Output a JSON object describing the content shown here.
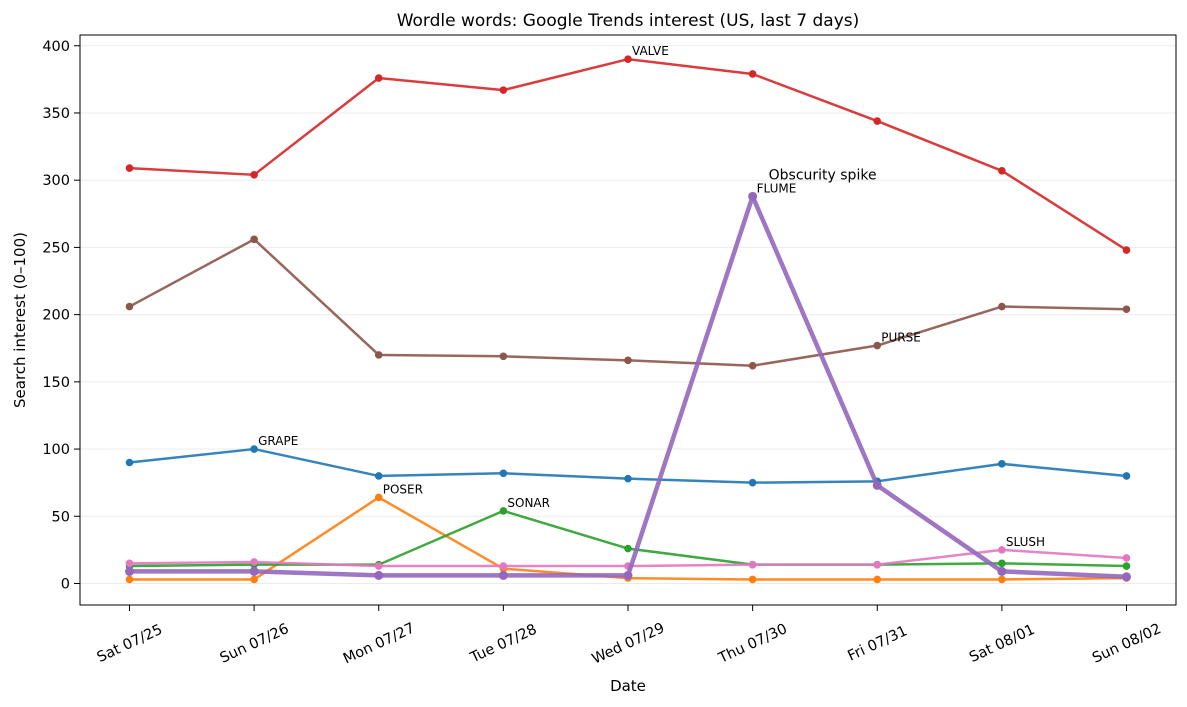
{
  "chart_data": {
    "type": "line",
    "title": "Wordle words: Google Trends interest (US, last 7 days)",
    "xlabel": "Date",
    "ylabel": "Search interest (0–100)",
    "categories": [
      "Sat 07/25",
      "Sun 07/26",
      "Mon 07/27",
      "Tue 07/28",
      "Wed 07/29",
      "Thu 07/30",
      "Fri 07/31",
      "Sat 08/01",
      "Sun 08/02"
    ],
    "ylim": [
      -16,
      408
    ],
    "yticks": [
      0,
      50,
      100,
      150,
      200,
      250,
      300,
      350,
      400
    ],
    "grid": "horizontal",
    "series": [
      {
        "name": "GRAPE",
        "color": "#1f77b4",
        "values": [
          90,
          100,
          80,
          82,
          78,
          75,
          76,
          89,
          80
        ],
        "label_index": 1,
        "bold": false
      },
      {
        "name": "POSER",
        "color": "#ff7f0e",
        "values": [
          3,
          3,
          64,
          11,
          4,
          3,
          3,
          3,
          4
        ],
        "label_index": 2,
        "bold": false
      },
      {
        "name": "SONAR",
        "color": "#2ca02c",
        "values": [
          13,
          14,
          14,
          54,
          26,
          14,
          14,
          15,
          13
        ],
        "label_index": 3,
        "bold": false
      },
      {
        "name": "VALVE",
        "color": "#d62728",
        "values": [
          309,
          304,
          376,
          367,
          390,
          379,
          344,
          307,
          248
        ],
        "label_index": 4,
        "bold": false
      },
      {
        "name": "PURSE",
        "color": "#8c564b",
        "values": [
          206,
          256,
          170,
          169,
          166,
          162,
          177,
          206,
          204
        ],
        "label_index": 6,
        "bold": false
      },
      {
        "name": "SLUSH",
        "color": "#e377c2",
        "values": [
          15,
          16,
          13,
          13,
          13,
          14,
          14,
          25,
          19
        ],
        "label_index": 7,
        "bold": false
      },
      {
        "name": "FLUME",
        "color": "#9467bd",
        "values": [
          9,
          9,
          6,
          6,
          6,
          288,
          73,
          9,
          5
        ],
        "label_index": 5,
        "bold": true
      }
    ],
    "annotations": [
      {
        "text": "Obscurity spike",
        "x": "Thu 07/30",
        "y": 288
      }
    ]
  }
}
